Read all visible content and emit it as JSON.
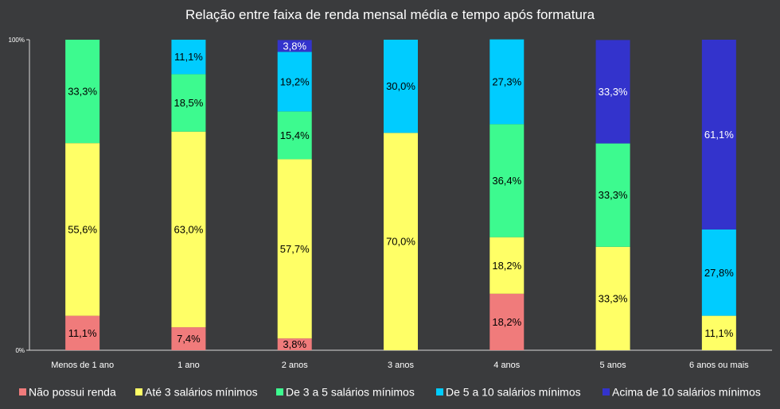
{
  "chart_data": {
    "type": "bar",
    "stacked": true,
    "percent_scale": true,
    "title": "Relação entre faixa de renda mensal média e tempo após formatura",
    "xlabel": "",
    "ylabel": "",
    "ylim": [
      0,
      100
    ],
    "yticks": [
      "0%",
      "100%"
    ],
    "grid": false,
    "legend_position": "bottom",
    "categories": [
      "Menos de 1 ano",
      "1 ano",
      "2 anos",
      "3 anos",
      "4 anos",
      "5 anos",
      "6 anos ou mais"
    ],
    "series": [
      {
        "name": "Não possui renda",
        "color": "#f07b7b",
        "values": [
          11.1,
          7.4,
          3.8,
          0,
          18.2,
          0,
          0
        ],
        "labels": [
          "11,1%",
          "7,4%",
          "3,8%",
          "",
          "18,2%",
          "",
          ""
        ]
      },
      {
        "name": "Até 3 salários mínimos",
        "color": "#ffff66",
        "values": [
          55.6,
          63.0,
          57.7,
          70.0,
          18.2,
          33.3,
          11.1
        ],
        "labels": [
          "55,6%",
          "63,0%",
          "57,7%",
          "70,0%",
          "18,2%",
          "33,3%",
          "11,1%"
        ]
      },
      {
        "name": "De 3 a 5 salários mínimos",
        "color": "#3dfa8f",
        "values": [
          33.3,
          18.5,
          15.4,
          0,
          36.4,
          33.3,
          0
        ],
        "labels": [
          "33,3%",
          "18,5%",
          "15,4%",
          "",
          "36,4%",
          "33,3%",
          ""
        ]
      },
      {
        "name": "De 5 a 10 salários mínimos",
        "color": "#00ccff",
        "values": [
          0,
          11.1,
          19.2,
          30.0,
          27.3,
          0,
          27.8
        ],
        "labels": [
          "",
          "11,1%",
          "19,2%",
          "30,0%",
          "27,3%",
          "",
          "27,8%"
        ]
      },
      {
        "name": "Acima de 10 salários mínimos",
        "color": "#3333cc",
        "values": [
          0,
          0,
          3.8,
          0,
          0,
          33.3,
          61.1
        ],
        "labels": [
          "",
          "",
          "3,8%",
          "",
          "",
          "33,3%",
          "61,1%"
        ]
      }
    ]
  }
}
